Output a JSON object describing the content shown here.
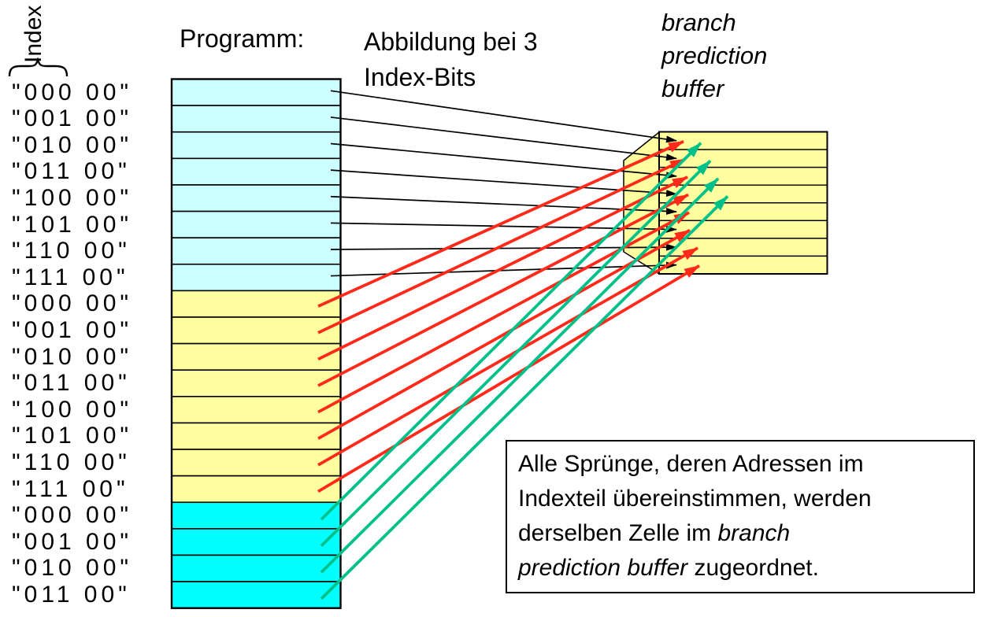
{
  "labels": {
    "index": "Index",
    "program_title": "Programm:",
    "mapping_title_lines": [
      "Abbildung bei 3",
      "Index-Bits"
    ],
    "buffer_title_lines": [
      "branch",
      "prediction",
      "buffer"
    ]
  },
  "colors": {
    "pale_cyan": "#CCFFFF",
    "pale_yellow": "#FFFFA0",
    "bright_cyan": "#00FFFF",
    "black": "#000000",
    "red": "#FF2A1A",
    "green": "#00C08A"
  },
  "program": {
    "rows": [
      {
        "label": "\"000 00\"",
        "color": "pale_cyan"
      },
      {
        "label": "\"001 00\"",
        "color": "pale_cyan"
      },
      {
        "label": "\"010 00\"",
        "color": "pale_cyan"
      },
      {
        "label": "\"011 00\"",
        "color": "pale_cyan"
      },
      {
        "label": "\"100 00\"",
        "color": "pale_cyan"
      },
      {
        "label": "\"101 00\"",
        "color": "pale_cyan"
      },
      {
        "label": "\"110 00\"",
        "color": "pale_cyan"
      },
      {
        "label": "\"111 00\"",
        "color": "pale_cyan"
      },
      {
        "label": "\"000 00\"",
        "color": "pale_yellow"
      },
      {
        "label": "\"001 00\"",
        "color": "pale_yellow"
      },
      {
        "label": "\"010 00\"",
        "color": "pale_yellow"
      },
      {
        "label": "\"011 00\"",
        "color": "pale_yellow"
      },
      {
        "label": "\"100 00\"",
        "color": "pale_yellow"
      },
      {
        "label": "\"101 00\"",
        "color": "pale_yellow"
      },
      {
        "label": "\"110 00\"",
        "color": "pale_yellow"
      },
      {
        "label": "\"111 00\"",
        "color": "pale_yellow"
      },
      {
        "label": "\"000 00\"",
        "color": "bright_cyan"
      },
      {
        "label": "\"001 00\"",
        "color": "bright_cyan"
      },
      {
        "label": "\"010 00\"",
        "color": "bright_cyan"
      },
      {
        "label": "\"011 00\"",
        "color": "bright_cyan"
      }
    ]
  },
  "buffer": {
    "cell_count": 8,
    "color": "pale_yellow"
  },
  "arrows": [
    {
      "from": 1,
      "to": 1,
      "color": "black"
    },
    {
      "from": 2,
      "to": 2,
      "color": "black"
    },
    {
      "from": 3,
      "to": 3,
      "color": "black"
    },
    {
      "from": 4,
      "to": 4,
      "color": "black"
    },
    {
      "from": 5,
      "to": 5,
      "color": "black"
    },
    {
      "from": 6,
      "to": 6,
      "color": "black"
    },
    {
      "from": 7,
      "to": 7,
      "color": "black"
    },
    {
      "from": 8,
      "to": 8,
      "color": "black"
    },
    {
      "from": 9,
      "to": 1,
      "color": "red"
    },
    {
      "from": 10,
      "to": 2,
      "color": "red"
    },
    {
      "from": 11,
      "to": 3,
      "color": "red"
    },
    {
      "from": 12,
      "to": 4,
      "color": "red"
    },
    {
      "from": 13,
      "to": 5,
      "color": "red"
    },
    {
      "from": 14,
      "to": 6,
      "color": "red"
    },
    {
      "from": 15,
      "to": 7,
      "color": "red"
    },
    {
      "from": 16,
      "to": 8,
      "color": "red"
    },
    {
      "from": 17,
      "to": 1,
      "color": "green"
    },
    {
      "from": 18,
      "to": 2,
      "color": "green"
    },
    {
      "from": 19,
      "to": 3,
      "color": "green"
    },
    {
      "from": 20,
      "to": 4,
      "color": "green"
    }
  ],
  "note": {
    "lines": [
      [
        {
          "t": "Alle Sprünge, deren Adressen im"
        }
      ],
      [
        {
          "t": "Indexteil übereinstimmen, werden"
        }
      ],
      [
        {
          "t": "derselben Zelle im "
        },
        {
          "t": "branch",
          "i": true
        }
      ],
      [
        {
          "t": "prediction buffer",
          "i": true
        },
        {
          "t": " zugeordnet."
        }
      ]
    ]
  }
}
